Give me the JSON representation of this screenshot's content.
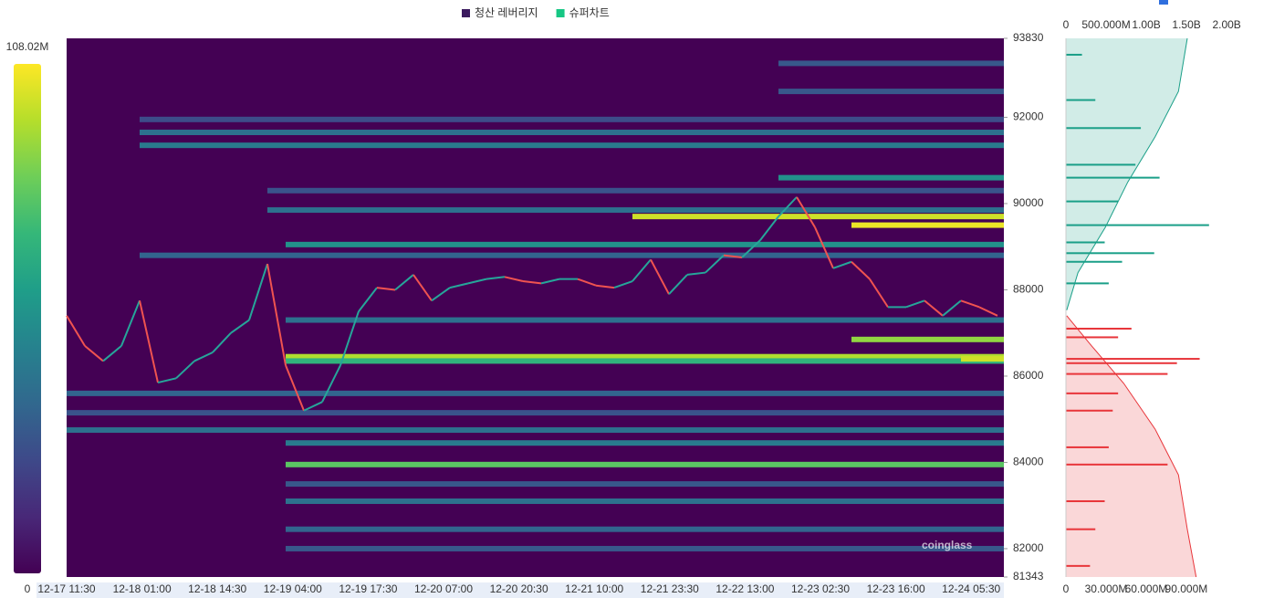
{
  "chart_data": {
    "type": "heatmap",
    "legend": [
      {
        "name": "청산 레버리지",
        "color": "#3b1a5e"
      },
      {
        "name": "슈퍼차트",
        "color": "#16c784"
      }
    ],
    "colorbar_ticks": [
      0,
      {
        "value": 108020000,
        "label": "108.02M"
      }
    ],
    "colormap": [
      "#440154",
      "#482878",
      "#3e4989",
      "#31688e",
      "#26828e",
      "#1f9e89",
      "#35b779",
      "#6ece58",
      "#b5de2b",
      "#fde725"
    ],
    "ylim": [
      81343,
      93830
    ],
    "yticks": [
      93830,
      92000,
      90000,
      88000,
      86000,
      84000,
      82000,
      81343
    ],
    "xticks": [
      "12-17 11:30",
      "12-18 01:00",
      "12-18 14:30",
      "12-19 04:00",
      "12-19 17:30",
      "12-20 07:00",
      "12-20 20:30",
      "12-21 10:00",
      "12-21 23:30",
      "12-22 13:00",
      "12-23 02:30",
      "12-23 16:00",
      "12-24 05:30"
    ],
    "price": [
      87400,
      86700,
      86350,
      86700,
      87750,
      85850,
      85950,
      86350,
      86550,
      87000,
      87300,
      88600,
      86250,
      85200,
      85400,
      86250,
      87500,
      88050,
      88000,
      88350,
      87750,
      88050,
      88150,
      88250,
      88300,
      88200,
      88150,
      88250,
      88250,
      88100,
      88050,
      88200,
      88700,
      87900,
      88350,
      88400,
      88800,
      88750,
      89150,
      89700,
      90150,
      89450,
      88500,
      88650,
      88250,
      87600,
      87600,
      87750,
      87400,
      87750,
      87600,
      87400
    ],
    "up_color": "#26a69a",
    "down_color": "#ef5350",
    "bands": [
      {
        "price": 89700,
        "value": 100000000,
        "from": 31
      },
      {
        "price": 89500,
        "value": 105000000,
        "from": 43
      },
      {
        "price": 86450,
        "value": 95000000,
        "from": 12
      },
      {
        "price": 86350,
        "value": 70000000,
        "from": 12
      },
      {
        "price": 83950,
        "value": 80000000,
        "from": 12
      },
      {
        "price": 86850,
        "value": 90000000,
        "from": 43
      },
      {
        "price": 86400,
        "value": 100000000,
        "from": 49
      },
      {
        "price": 90600,
        "value": 55000000,
        "from": 39
      },
      {
        "price": 91650,
        "value": 40000000,
        "from": 4
      },
      {
        "price": 91350,
        "value": 45000000,
        "from": 4
      },
      {
        "price": 89050,
        "value": 55000000,
        "from": 12
      },
      {
        "price": 88800,
        "value": 35000000,
        "from": 4
      },
      {
        "price": 85600,
        "value": 35000000,
        "from": 0
      },
      {
        "price": 84750,
        "value": 40000000,
        "from": 0
      },
      {
        "price": 84450,
        "value": 45000000,
        "from": 12
      },
      {
        "price": 83100,
        "value": 40000000,
        "from": 12
      },
      {
        "price": 82450,
        "value": 35000000,
        "from": 12
      },
      {
        "price": 82000,
        "value": 30000000,
        "from": 12
      },
      {
        "price": 89850,
        "value": 40000000,
        "from": 11
      },
      {
        "price": 93250,
        "value": 30000000,
        "from": 39
      },
      {
        "price": 92600,
        "value": 30000000,
        "from": 39
      },
      {
        "price": 87300,
        "value": 40000000,
        "from": 12
      },
      {
        "price": 91950,
        "value": 25000000,
        "from": 4
      },
      {
        "price": 85150,
        "value": 28000000,
        "from": 0
      },
      {
        "price": 83500,
        "value": 30000000,
        "from": 12
      },
      {
        "price": 90300,
        "value": 28000000,
        "from": 11
      }
    ],
    "watermark": "coinglass",
    "profile": {
      "xlim_top": [
        0,
        2180000000
      ],
      "xticks_top": [
        0,
        {
          "value": 500000000,
          "label": "500.000M"
        },
        {
          "value": 1000000000,
          "label": "1.00B"
        },
        {
          "value": 1500000000,
          "label": "1.50B"
        },
        {
          "value": 2000000000,
          "label": "2.00B"
        }
      ],
      "xlim_bottom": [
        0,
        131000000
      ],
      "xticks_bottom": [
        0,
        {
          "value": 30000000,
          "label": "30.000M"
        },
        {
          "value": 60000000,
          "label": "60.000M"
        },
        {
          "value": 90000000,
          "label": "90.000M"
        }
      ],
      "upper_color": "#1a9f88",
      "lower_color": "#e8353a",
      "upper_bars": [
        {
          "price": 89500,
          "value": 107000000
        },
        {
          "price": 90600,
          "value": 70000000
        },
        {
          "price": 88850,
          "value": 66000000
        },
        {
          "price": 91750,
          "value": 56000000
        },
        {
          "price": 90900,
          "value": 52000000
        },
        {
          "price": 88650,
          "value": 42000000
        },
        {
          "price": 90050,
          "value": 39000000
        },
        {
          "price": 92400,
          "value": 22000000
        },
        {
          "price": 93450,
          "value": 12000000
        },
        {
          "price": 89100,
          "value": 29000000
        },
        {
          "price": 88150,
          "value": 32000000
        }
      ],
      "lower_bars": [
        {
          "price": 86400,
          "value": 100000000
        },
        {
          "price": 86300,
          "value": 83000000
        },
        {
          "price": 86050,
          "value": 76000000
        },
        {
          "price": 83950,
          "value": 76000000
        },
        {
          "price": 87100,
          "value": 49000000
        },
        {
          "price": 86900,
          "value": 39000000
        },
        {
          "price": 85200,
          "value": 35000000
        },
        {
          "price": 84350,
          "value": 32000000
        },
        {
          "price": 83100,
          "value": 29000000
        },
        {
          "price": 82450,
          "value": 22000000
        },
        {
          "price": 81600,
          "value": 18000000
        },
        {
          "price": 85600,
          "value": 39000000
        }
      ],
      "upper_cumulative": {
        "prices": [
          93830,
          92600,
          91550,
          90500,
          89450,
          88400,
          87530
        ],
        "values": [
          1510000000,
          1400000000,
          1110000000,
          770000000,
          490000000,
          150000000,
          10000000
        ]
      },
      "lower_cumulative": {
        "prices": [
          87400,
          86700,
          85830,
          84770,
          83710,
          82450,
          81343
        ],
        "values": [
          10000000,
          320000000,
          720000000,
          1110000000,
          1400000000,
          1510000000,
          1620000000
        ]
      }
    }
  }
}
